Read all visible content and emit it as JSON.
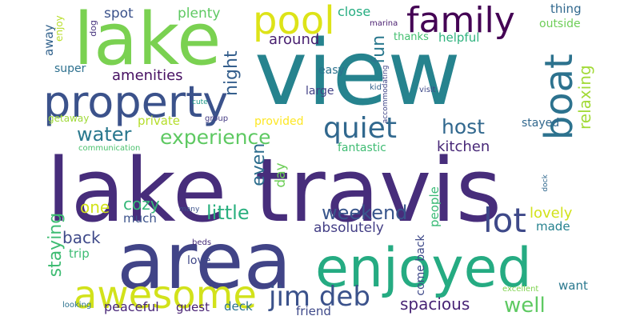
{
  "words": [
    {
      "text": "view",
      "color": "#26838e"
    },
    {
      "text": "lake travis",
      "color": "#472d7b"
    },
    {
      "text": "lake",
      "color": "#7ad151"
    },
    {
      "text": "area",
      "color": "#414487"
    },
    {
      "text": "enjoyed",
      "color": "#25ab82"
    },
    {
      "text": "property",
      "color": "#3b528b"
    },
    {
      "text": "awesome",
      "color": "#d2e21b"
    },
    {
      "text": "family",
      "color": "#440154"
    },
    {
      "text": "pool",
      "color": "#dde318"
    },
    {
      "text": "boat",
      "color": "#2c728e"
    },
    {
      "text": "lot",
      "color": "#3e4989"
    },
    {
      "text": "quiet",
      "color": "#31688e"
    },
    {
      "text": "jim deb",
      "color": "#3b528b"
    },
    {
      "text": "experience",
      "color": "#5ec962"
    },
    {
      "text": "water",
      "color": "#2a788e"
    },
    {
      "text": "host",
      "color": "#31688e"
    },
    {
      "text": "fun",
      "color": "#2a788e"
    },
    {
      "text": "night",
      "color": "#355f8d"
    },
    {
      "text": "even",
      "color": "#2e6e8e"
    },
    {
      "text": "little",
      "color": "#2ab07f"
    },
    {
      "text": "weekend",
      "color": "#39568c"
    },
    {
      "text": "well",
      "color": "#5ec962"
    },
    {
      "text": "spacious",
      "color": "#482475"
    },
    {
      "text": "staying",
      "color": "#3fbc73"
    },
    {
      "text": "relaxing",
      "color": "#a2da37"
    },
    {
      "text": "kitchen",
      "color": "#482878"
    },
    {
      "text": "amenities",
      "color": "#471063"
    },
    {
      "text": "around",
      "color": "#481f70"
    },
    {
      "text": "back",
      "color": "#3e4989"
    },
    {
      "text": "cozy",
      "color": "#35b779"
    },
    {
      "text": "one",
      "color": "#d2e21b"
    },
    {
      "text": "lovely",
      "color": "#d2e21b"
    },
    {
      "text": "absolutely",
      "color": "#433e85"
    },
    {
      "text": "spot",
      "color": "#3b528b"
    },
    {
      "text": "plenty",
      "color": "#5ec962"
    },
    {
      "text": "close",
      "color": "#26ad81"
    },
    {
      "text": "thing",
      "color": "#31688e"
    },
    {
      "text": "outside",
      "color": "#6ece58"
    },
    {
      "text": "away",
      "color": "#33638d"
    },
    {
      "text": "helpful",
      "color": "#2db27d"
    },
    {
      "text": "thanks",
      "color": "#44bf70"
    },
    {
      "text": "fantastic",
      "color": "#3fbc73"
    },
    {
      "text": "stayed",
      "color": "#31688e"
    },
    {
      "text": "private",
      "color": "#b5de2b"
    },
    {
      "text": "provided",
      "color": "#fde725"
    },
    {
      "text": "day",
      "color": "#6ece58"
    },
    {
      "text": "made",
      "color": "#26828e"
    },
    {
      "text": "people",
      "color": "#3aba76"
    },
    {
      "text": "come back",
      "color": "#3e4989"
    },
    {
      "text": "much",
      "color": "#3b528b"
    },
    {
      "text": "peaceful",
      "color": "#482677"
    },
    {
      "text": "guest",
      "color": "#482173"
    },
    {
      "text": "deck",
      "color": "#2c728e"
    },
    {
      "text": "friend",
      "color": "#3e4989"
    },
    {
      "text": "want",
      "color": "#2a788e"
    },
    {
      "text": "trip",
      "color": "#3dbc74"
    },
    {
      "text": "love",
      "color": "#3f4788"
    },
    {
      "text": "easy",
      "color": "#2c728e"
    },
    {
      "text": "large",
      "color": "#424186"
    },
    {
      "text": "super",
      "color": "#2d708e"
    },
    {
      "text": "enjoy",
      "color": "#b8de29"
    },
    {
      "text": "dog",
      "color": "#46337e"
    },
    {
      "text": "getaway",
      "color": "#a0da39"
    },
    {
      "text": "group",
      "color": "#443a83"
    },
    {
      "text": "cute",
      "color": "#1f9a8a"
    },
    {
      "text": "kid",
      "color": "#33638d"
    },
    {
      "text": "accommodating",
      "color": "#404688"
    },
    {
      "text": "visit",
      "color": "#3e4989"
    },
    {
      "text": "marina",
      "color": "#481d6f"
    },
    {
      "text": "communication",
      "color": "#4ac16d"
    },
    {
      "text": "many",
      "color": "#3b528b"
    },
    {
      "text": "beds",
      "color": "#472c7a"
    },
    {
      "text": "looking",
      "color": "#2c728e"
    },
    {
      "text": "excellent",
      "color": "#7fd34e"
    },
    {
      "text": "dock",
      "color": "#30688e"
    }
  ]
}
